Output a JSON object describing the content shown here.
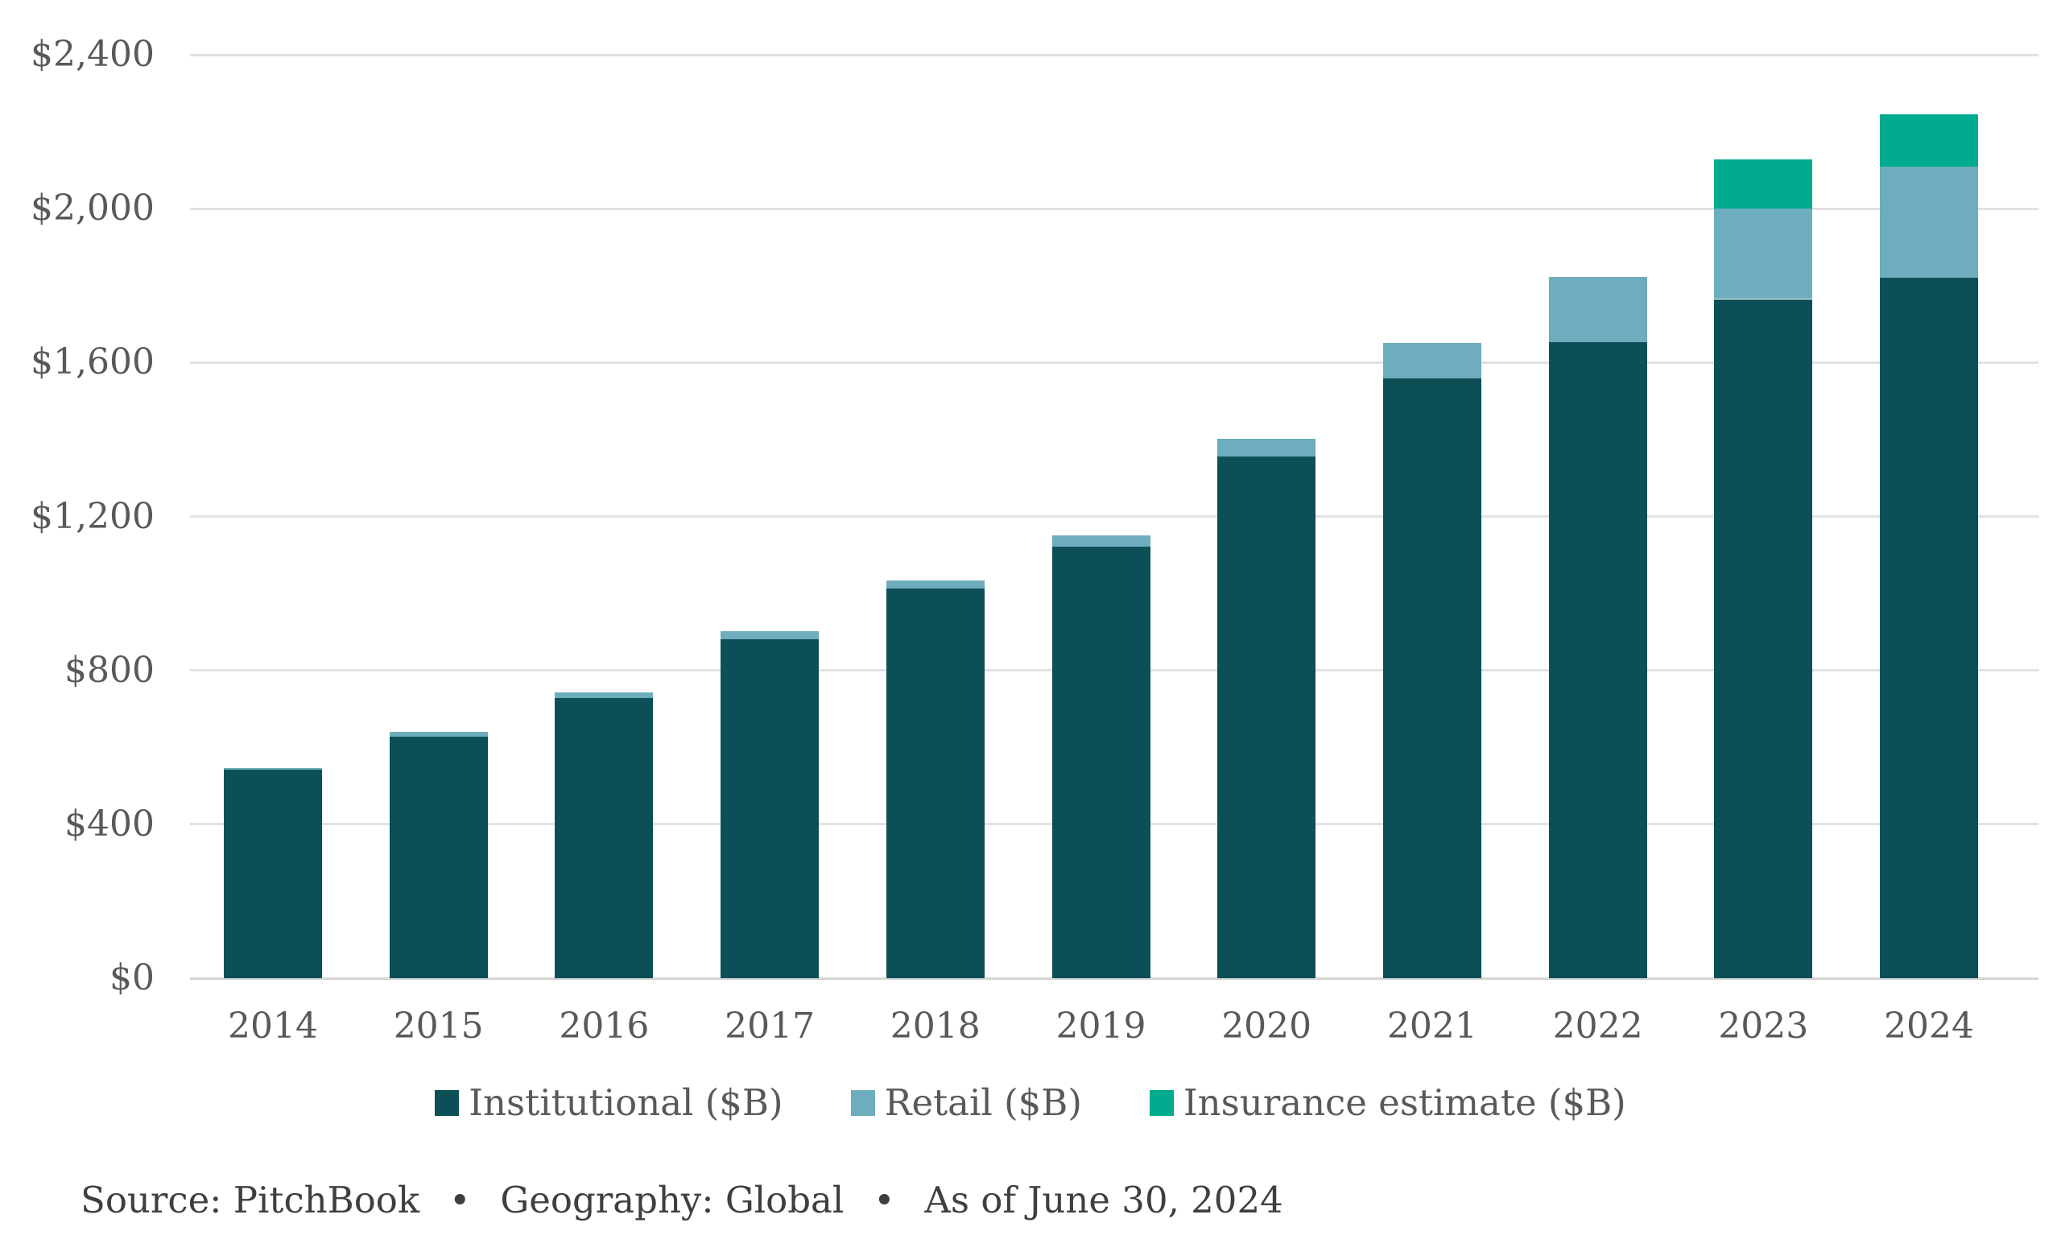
{
  "chart_data": {
    "type": "bar",
    "stacked": true,
    "title": "",
    "xlabel": "",
    "ylabel": "",
    "categories": [
      "2014",
      "2015",
      "2016",
      "2017",
      "2018",
      "2019",
      "2020",
      "2021",
      "2022",
      "2023",
      "2024"
    ],
    "series": [
      {
        "name": "Institutional ($B)",
        "color": "#0d4f57",
        "values": [
          542,
          628,
          728,
          881,
          1012,
          1121,
          1357,
          1560,
          1653,
          1765,
          1820
        ]
      },
      {
        "name": "Retail ($B)",
        "color": "#6dadbd",
        "values": [
          5,
          12,
          15,
          20,
          22,
          30,
          45,
          91,
          169,
          235,
          289
        ]
      },
      {
        "name": "Insurance estimate ($B)",
        "color": "#00ab8e",
        "values": [
          0,
          0,
          0,
          0,
          0,
          0,
          0,
          0,
          0,
          129,
          137
        ]
      }
    ],
    "ylim": [
      0,
      2400
    ],
    "ytick_values": [
      0,
      400,
      800,
      1200,
      1600,
      2000,
      2400
    ],
    "ytick_labels": [
      "$0",
      "$400",
      "$800",
      "$1,200",
      "$1,600",
      "$2,000",
      "$2,400"
    ],
    "grid": true,
    "legend_position": "bottom"
  },
  "legend": {
    "items": [
      {
        "label": "Institutional ($B)",
        "color": "#0d4f57"
      },
      {
        "label": "Retail ($B)",
        "color": "#6dadbd"
      },
      {
        "label": "Insurance estimate ($B)",
        "color": "#00ab8e"
      }
    ]
  },
  "footer": {
    "source_line": "Source: PitchBook  •  Geography: Global  •  As of June 30, 2024"
  },
  "colors": {
    "institutional": "#0d4f57",
    "retail": "#6dadbd",
    "insurance": "#00ab8e",
    "gridline": "#e2e2e2",
    "axis_text": "#595959",
    "source_text": "#3f3f3f",
    "background": "#ffffff"
  }
}
